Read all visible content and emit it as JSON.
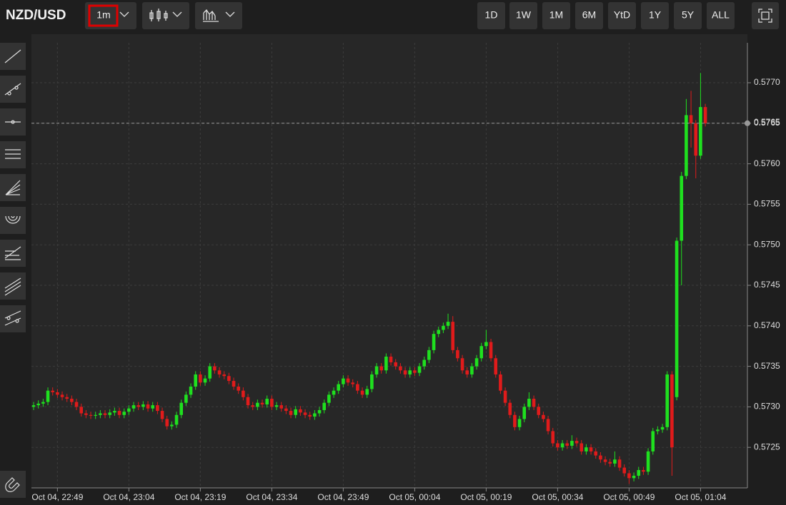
{
  "toolbar": {
    "symbol": "NZD/USD",
    "interval": "1m",
    "ranges": [
      "1D",
      "1W",
      "1M",
      "6M",
      "YtD",
      "1Y",
      "5Y",
      "ALL"
    ]
  },
  "chart_data": {
    "type": "candlestick",
    "categories": [
      null,
      null,
      null,
      null,
      null,
      "Oct 04, 22:49",
      null,
      null,
      null,
      null,
      null,
      null,
      null,
      null,
      null,
      null,
      null,
      null,
      null,
      null,
      "Oct 04, 23:04",
      null,
      null,
      null,
      null,
      null,
      null,
      null,
      null,
      null,
      null,
      null,
      null,
      null,
      null,
      "Oct 04, 23:19",
      null,
      null,
      null,
      null,
      null,
      null,
      null,
      null,
      null,
      null,
      null,
      null,
      null,
      null,
      "Oct 04, 23:34",
      null,
      null,
      null,
      null,
      null,
      null,
      null,
      null,
      null,
      null,
      null,
      null,
      null,
      null,
      "Oct 04, 23:49",
      null,
      null,
      null,
      null,
      null,
      null,
      null,
      null,
      null,
      null,
      null,
      null,
      null,
      null,
      "Oct 05, 00:04",
      null,
      null,
      null,
      null,
      null,
      null,
      null,
      null,
      null,
      null,
      null,
      null,
      null,
      null,
      "Oct 05, 00:19",
      null,
      null,
      null,
      null,
      null,
      null,
      null,
      null,
      null,
      null,
      null,
      null,
      null,
      null,
      "Oct 05, 00:34",
      null,
      null,
      null,
      null,
      null,
      null,
      null,
      null,
      null,
      null,
      null,
      null,
      null,
      null,
      "Oct 05, 00:49",
      null,
      null,
      null,
      null,
      null,
      null,
      null,
      null,
      null,
      null,
      null,
      null,
      null,
      null,
      "Oct 05, 01:04",
      null
    ],
    "opens": [
      0.573,
      0.57302,
      0.57304,
      0.57306,
      0.5732,
      0.57318,
      0.57315,
      0.57312,
      0.5731,
      0.57306,
      0.573,
      0.57292,
      0.5729,
      0.57289,
      0.5729,
      0.57292,
      0.5729,
      0.57293,
      0.57295,
      0.5729,
      0.57294,
      0.57298,
      0.57302,
      0.573,
      0.57303,
      0.57298,
      0.57302,
      0.57295,
      0.57285,
      0.57276,
      0.57278,
      0.5729,
      0.57305,
      0.57315,
      0.57325,
      0.5734,
      0.5733,
      0.57335,
      0.5735,
      0.57345,
      0.5734,
      0.57338,
      0.57332,
      0.57325,
      0.5732,
      0.57312,
      0.57302,
      0.573,
      0.57305,
      0.57303,
      0.5731,
      0.573,
      0.57302,
      0.57298,
      0.57295,
      0.5729,
      0.57297,
      0.57293,
      0.5729,
      0.57288,
      0.57292,
      0.57296,
      0.57305,
      0.57315,
      0.5732,
      0.57328,
      0.57335,
      0.5733,
      0.57328,
      0.5732,
      0.57315,
      0.57322,
      0.5734,
      0.5735,
      0.57345,
      0.57362,
      0.57355,
      0.5735,
      0.57345,
      0.5734,
      0.57345,
      0.57342,
      0.5735,
      0.57358,
      0.5737,
      0.5739,
      0.57395,
      0.574,
      0.57405,
      0.5737,
      0.5736,
      0.57345,
      0.5734,
      0.5735,
      0.5736,
      0.57375,
      0.5738,
      0.5736,
      0.5734,
      0.5732,
      0.57305,
      0.5729,
      0.57275,
      0.57285,
      0.573,
      0.5731,
      0.573,
      0.5729,
      0.57285,
      0.5727,
      0.57255,
      0.5725,
      0.57255,
      0.57252,
      0.57258,
      0.57255,
      0.57245,
      0.5725,
      0.57245,
      0.5724,
      0.57235,
      0.57232,
      0.5723,
      0.57235,
      0.57225,
      0.57218,
      0.57212,
      0.57215,
      0.57222,
      0.5722,
      0.57245,
      0.5727,
      0.57272,
      0.57275,
      0.5734,
      0.57312,
      0.57505,
      0.57585,
      0.5766,
      0.5765,
      0.5761,
      0.5767
    ],
    "highs": [
      0.57306,
      0.57308,
      0.5731,
      0.57324,
      0.57324,
      0.57322,
      0.57319,
      0.57316,
      0.57314,
      0.5731,
      0.57304,
      0.57296,
      0.57294,
      0.57294,
      0.57296,
      0.57296,
      0.57297,
      0.57299,
      0.57299,
      0.57298,
      0.57302,
      0.57306,
      0.57306,
      0.57307,
      0.57307,
      0.57306,
      0.57306,
      0.57299,
      0.57289,
      0.57282,
      0.57294,
      0.57309,
      0.57319,
      0.57329,
      0.57344,
      0.57344,
      0.57339,
      0.57354,
      0.57354,
      0.57349,
      0.57344,
      0.57342,
      0.57336,
      0.57329,
      0.57324,
      0.57316,
      0.57306,
      0.57309,
      0.57309,
      0.57314,
      0.57314,
      0.57306,
      0.57306,
      0.57302,
      0.57299,
      0.57301,
      0.57301,
      0.57297,
      0.57294,
      0.57296,
      0.573,
      0.57309,
      0.57319,
      0.57324,
      0.57332,
      0.57339,
      0.57339,
      0.57334,
      0.57332,
      0.57324,
      0.57326,
      0.57344,
      0.57354,
      0.57354,
      0.57366,
      0.57366,
      0.57359,
      0.57354,
      0.57349,
      0.57349,
      0.57349,
      0.57354,
      0.57362,
      0.57374,
      0.57394,
      0.57399,
      0.57404,
      0.57415,
      0.57412,
      0.57374,
      0.57364,
      0.57349,
      0.57354,
      0.57364,
      0.57379,
      0.57395,
      0.57384,
      0.57364,
      0.57344,
      0.57324,
      0.57309,
      0.57294,
      0.57289,
      0.57304,
      0.57318,
      0.57314,
      0.57304,
      0.57294,
      0.57289,
      0.57274,
      0.57259,
      0.57259,
      0.57259,
      0.57265,
      0.57262,
      0.57259,
      0.57254,
      0.57254,
      0.57249,
      0.57244,
      0.57239,
      0.57236,
      0.57245,
      0.57239,
      0.57229,
      0.57222,
      0.57219,
      0.57226,
      0.57226,
      0.57249,
      0.57274,
      0.57276,
      0.57279,
      0.57344,
      0.57344,
      0.57509,
      0.5759,
      0.5768,
      0.5769,
      0.57654,
      0.57712,
      0.57674
    ],
    "lows": [
      0.57296,
      0.57298,
      0.573,
      0.57302,
      0.57314,
      0.57311,
      0.57308,
      0.57306,
      0.57302,
      0.57296,
      0.57288,
      0.57286,
      0.57285,
      0.57285,
      0.57286,
      0.57286,
      0.57286,
      0.57289,
      0.57286,
      0.57286,
      0.5729,
      0.57294,
      0.57296,
      0.57296,
      0.57294,
      0.57294,
      0.57291,
      0.57281,
      0.57272,
      0.57272,
      0.57274,
      0.57286,
      0.57301,
      0.57311,
      0.57321,
      0.57326,
      0.57326,
      0.57331,
      0.57341,
      0.57336,
      0.57334,
      0.57328,
      0.57321,
      0.57316,
      0.57308,
      0.57298,
      0.57296,
      0.57296,
      0.57299,
      0.57299,
      0.57296,
      0.57296,
      0.57294,
      0.57291,
      0.57286,
      0.57286,
      0.57289,
      0.57286,
      0.57284,
      0.57284,
      0.57288,
      0.57292,
      0.57301,
      0.57311,
      0.57316,
      0.57324,
      0.57326,
      0.57324,
      0.57316,
      0.57311,
      0.57311,
      0.57318,
      0.57336,
      0.57341,
      0.57341,
      0.57351,
      0.57346,
      0.57341,
      0.57336,
      0.57336,
      0.57338,
      0.57338,
      0.57346,
      0.57354,
      0.57366,
      0.57386,
      0.57391,
      0.57396,
      0.57366,
      0.57356,
      0.57341,
      0.57336,
      0.57336,
      0.57346,
      0.57356,
      0.57371,
      0.57356,
      0.57336,
      0.57316,
      0.57301,
      0.57286,
      0.57271,
      0.57271,
      0.57281,
      0.57296,
      0.57296,
      0.57286,
      0.57281,
      0.57266,
      0.57251,
      0.57246,
      0.57246,
      0.57248,
      0.57248,
      0.57251,
      0.57241,
      0.57241,
      0.57241,
      0.57236,
      0.57231,
      0.57228,
      0.57226,
      0.57226,
      0.57221,
      0.57214,
      0.57205,
      0.57208,
      0.57211,
      0.57216,
      0.57216,
      0.57241,
      0.57266,
      0.57268,
      0.57271,
      0.57215,
      0.57308,
      0.5745,
      0.57581,
      0.5762,
      0.57582,
      0.57606,
      0.57646
    ],
    "closes": [
      0.57302,
      0.57304,
      0.57306,
      0.5732,
      0.57318,
      0.57315,
      0.57312,
      0.5731,
      0.57306,
      0.573,
      0.57292,
      0.5729,
      0.57289,
      0.5729,
      0.57292,
      0.5729,
      0.57293,
      0.57295,
      0.5729,
      0.57294,
      0.57298,
      0.57302,
      0.573,
      0.57303,
      0.57298,
      0.57302,
      0.57295,
      0.57285,
      0.57276,
      0.57278,
      0.5729,
      0.57305,
      0.57315,
      0.57325,
      0.5734,
      0.5733,
      0.57335,
      0.5735,
      0.57345,
      0.5734,
      0.57338,
      0.57332,
      0.57325,
      0.5732,
      0.57312,
      0.57302,
      0.573,
      0.57305,
      0.57303,
      0.5731,
      0.573,
      0.57302,
      0.57298,
      0.57295,
      0.5729,
      0.57297,
      0.57293,
      0.5729,
      0.57288,
      0.57292,
      0.57296,
      0.57305,
      0.57315,
      0.5732,
      0.57328,
      0.57335,
      0.5733,
      0.57328,
      0.5732,
      0.57315,
      0.57322,
      0.5734,
      0.5735,
      0.57345,
      0.57362,
      0.57355,
      0.5735,
      0.57345,
      0.5734,
      0.57345,
      0.57342,
      0.5735,
      0.57358,
      0.5737,
      0.5739,
      0.57395,
      0.574,
      0.57405,
      0.5737,
      0.5736,
      0.57345,
      0.5734,
      0.5735,
      0.5736,
      0.57375,
      0.5738,
      0.5736,
      0.5734,
      0.5732,
      0.57305,
      0.5729,
      0.57275,
      0.57285,
      0.573,
      0.5731,
      0.573,
      0.5729,
      0.57285,
      0.5727,
      0.57255,
      0.5725,
      0.57255,
      0.57252,
      0.57258,
      0.57255,
      0.57245,
      0.5725,
      0.57245,
      0.5724,
      0.57235,
      0.57232,
      0.5723,
      0.57235,
      0.57225,
      0.57218,
      0.57212,
      0.57215,
      0.57222,
      0.5722,
      0.57245,
      0.5727,
      0.57272,
      0.57275,
      0.5734,
      0.5725,
      0.57505,
      0.57585,
      0.5766,
      0.5765,
      0.5761,
      0.5767,
      0.5765
    ],
    "up_color": "#1fe01f",
    "down_color": "#e01b1b",
    "ylim": [
      0.572,
      0.5775
    ],
    "yticks": [
      0.5725,
      {
        "value": 0.573,
        "label": "0.5730"
      },
      0.5735,
      {
        "value": 0.574,
        "label": "0.5740"
      },
      0.5745,
      {
        "value": 0.575,
        "label": "0.5750"
      },
      0.5755,
      {
        "value": 0.576,
        "label": "0.5760"
      },
      0.5765,
      {
        "value": 0.577,
        "label": "0.5770"
      }
    ],
    "last_price": 0.5765,
    "grid": true
  }
}
